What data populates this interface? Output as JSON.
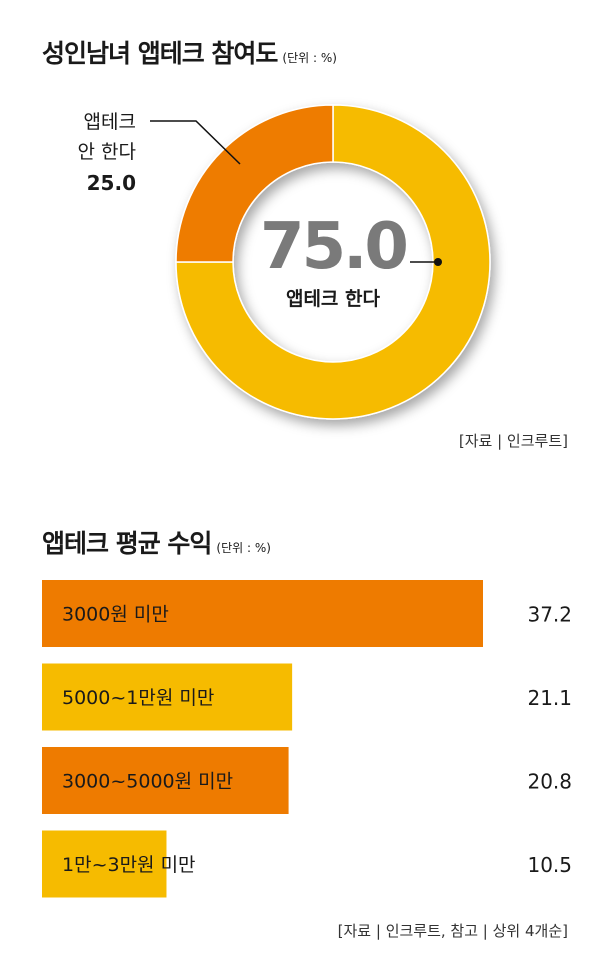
{
  "charts": [
    {
      "title": "성인남녀 앱테크 참여도",
      "unit": "(단위 : %)",
      "source": "[자료 | 인크루트]"
    },
    {
      "title": "앱테크 평균 수익",
      "unit": "(단위 : %)",
      "source": "[자료 | 인크루트, 참고 | 상위 4개순]"
    }
  ],
  "colors": {
    "orange": "#ee7b00",
    "yellow": "#f6bb00",
    "center_text": "#7a7a7a"
  },
  "chart_data": [
    {
      "type": "pie",
      "title": "성인남녀 앱테크 참여도",
      "slices": [
        {
          "label_lines": [
            "앱테크",
            "한다"
          ],
          "label": "앱테크 한다",
          "value": 75.0,
          "value_text": "75.0",
          "color": "#f6bb00"
        },
        {
          "label_lines": [
            "앱테크",
            "안 한다"
          ],
          "label": "앱테크 안 한다",
          "value": 25.0,
          "value_text": "25.0",
          "color": "#ee7b00"
        }
      ]
    },
    {
      "type": "bar",
      "orientation": "horizontal",
      "title": "앱테크 평균 수익",
      "categories": [
        "3000원 미만",
        "5000~1만원 미만",
        "3000~5000원 미만",
        "1만~3만원 미만"
      ],
      "values": [
        37.2,
        21.1,
        20.8,
        10.5
      ],
      "value_labels": [
        "37.2",
        "21.1",
        "20.8",
        "10.5"
      ],
      "colors": [
        "#ee7b00",
        "#f6bb00",
        "#ee7b00",
        "#f6bb00"
      ],
      "xlim": [
        0,
        37.2
      ]
    }
  ]
}
